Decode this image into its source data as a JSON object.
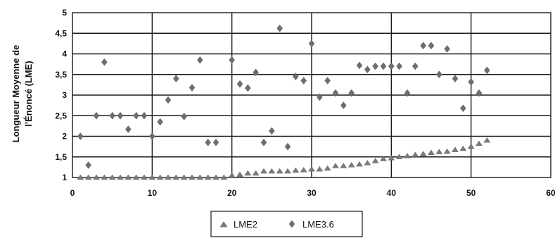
{
  "chart_data": {
    "type": "scatter",
    "title": "",
    "xlabel": "",
    "ylabel_lines": [
      "Longueur Moyenne de",
      "l'Énoncé (LME)"
    ],
    "xlim": [
      0,
      60
    ],
    "ylim": [
      1,
      5
    ],
    "x_ticks": [
      "0",
      "10",
      "20",
      "30",
      "40",
      "50",
      "60"
    ],
    "y_ticks": [
      "1",
      "1,5",
      "2",
      "2,5",
      "3",
      "3,5",
      "4",
      "4,5",
      "5"
    ],
    "grid": true,
    "legend_position": "bottom-center",
    "series": [
      {
        "name": "LME2",
        "marker": "triangle",
        "x": [
          1,
          2,
          3,
          4,
          5,
          6,
          7,
          8,
          9,
          10,
          11,
          12,
          13,
          14,
          15,
          16,
          17,
          18,
          19,
          20,
          21,
          22,
          23,
          24,
          25,
          26,
          27,
          28,
          29,
          30,
          31,
          32,
          33,
          34,
          35,
          36,
          37,
          38,
          39,
          40,
          41,
          42,
          43,
          44,
          45,
          46,
          47,
          48,
          49,
          50,
          51,
          52
        ],
        "y": [
          1,
          1,
          1,
          1,
          1,
          1,
          1,
          1,
          1,
          1,
          1,
          1,
          1,
          1,
          1,
          1,
          1,
          1,
          1,
          1.05,
          1.07,
          1.1,
          1.1,
          1.15,
          1.15,
          1.15,
          1.15,
          1.17,
          1.18,
          1.2,
          1.2,
          1.22,
          1.28,
          1.28,
          1.3,
          1.32,
          1.35,
          1.4,
          1.45,
          1.47,
          1.5,
          1.52,
          1.55,
          1.57,
          1.6,
          1.62,
          1.63,
          1.67,
          1.7,
          1.75,
          1.82,
          1.9
        ]
      },
      {
        "name": "LME3.6",
        "marker": "diamond",
        "x": [
          1,
          2,
          3,
          4,
          5,
          6,
          7,
          8,
          9,
          10,
          11,
          12,
          13,
          14,
          15,
          16,
          17,
          18,
          20,
          21,
          22,
          23,
          24,
          25,
          26,
          27,
          28,
          29,
          30,
          31,
          32,
          33,
          34,
          35,
          36,
          37,
          38,
          39,
          40,
          41,
          42,
          43,
          44,
          45,
          46,
          47,
          48,
          49,
          50,
          51,
          52
        ],
        "y": [
          2,
          1.3,
          2.5,
          3.8,
          2.5,
          2.5,
          2.17,
          2.5,
          2.5,
          2,
          2.35,
          2.88,
          3.4,
          2.48,
          3.18,
          3.85,
          1.85,
          1.85,
          3.85,
          3.27,
          3.17,
          3.55,
          1.85,
          2.13,
          4.62,
          1.75,
          3.45,
          3.35,
          4.25,
          2.95,
          3.35,
          3.05,
          2.75,
          3.05,
          3.72,
          3.62,
          3.7,
          3.7,
          3.7,
          3.7,
          3.05,
          3.7,
          4.2,
          4.2,
          3.5,
          4.12,
          3.4,
          2.68,
          3.32,
          3.05,
          3.6
        ]
      }
    ]
  }
}
